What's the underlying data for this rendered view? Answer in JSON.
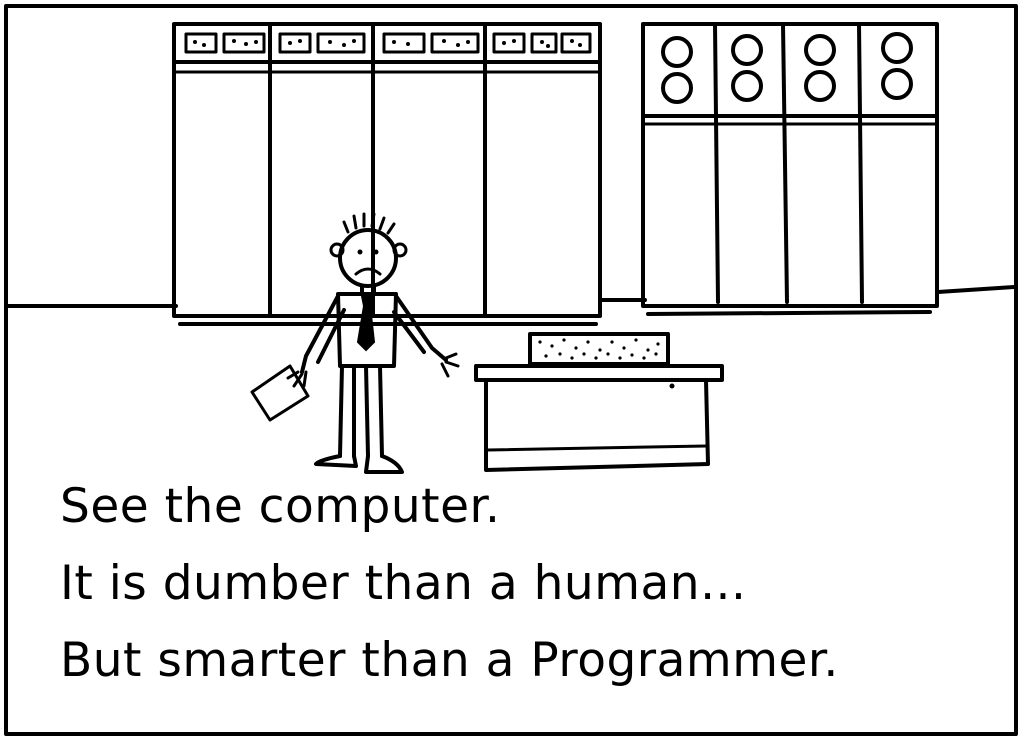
{
  "caption": {
    "line1": "See the computer.",
    "line2": "It is dumber than a human...",
    "line3": "But smarter than a Programmer."
  },
  "colors": {
    "ink": "#000000",
    "paper": "#ffffff"
  },
  "icons": [
    "mainframe-cabinet-icon",
    "tape-drive-icon",
    "person-icon",
    "desk-icon",
    "printout-icon"
  ]
}
